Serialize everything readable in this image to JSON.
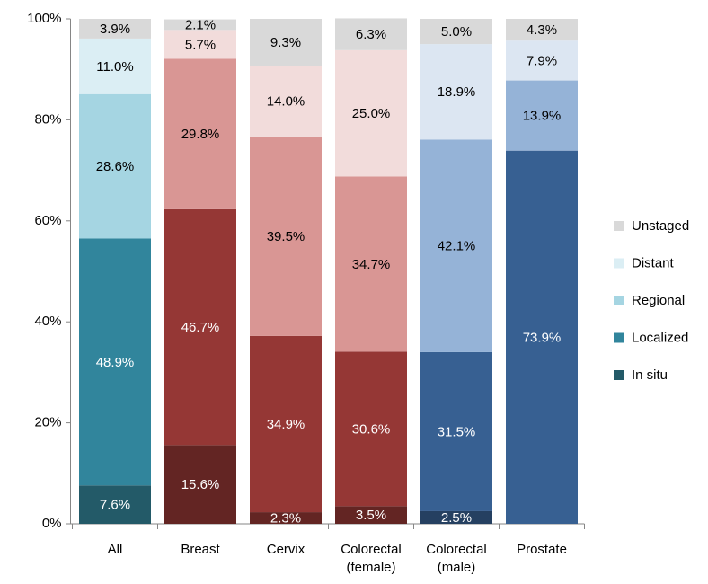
{
  "chart_data": {
    "type": "stacked_bar",
    "categories": [
      "All",
      "Breast",
      "Cervix",
      "Colorectal (female)",
      "Colorectal (male)",
      "Prostate"
    ],
    "series": [
      {
        "name": "In situ",
        "color": "#235a68",
        "colors": [
          "#235a68",
          "#632523",
          "#632523",
          "#632523",
          "#254061",
          "#254061"
        ],
        "values": [
          7.6,
          15.6,
          2.3,
          3.5,
          2.5,
          null
        ],
        "value_labels": [
          "7.6%",
          "15.6%",
          "2.3%",
          "3.5%",
          "2.5%",
          null
        ]
      },
      {
        "name": "Localized",
        "color": "#31859c",
        "colors": [
          "#31859c",
          "#953735",
          "#953735",
          "#953735",
          "#376092",
          "#376092"
        ],
        "values": [
          48.9,
          46.7,
          34.9,
          30.6,
          31.5,
          73.9
        ],
        "value_labels": [
          "48.9%",
          "46.7%",
          "34.9%",
          "30.6%",
          "31.5%",
          "73.9%"
        ]
      },
      {
        "name": "Regional",
        "color": "#a5d5e2",
        "colors": [
          "#a5d5e2",
          "#d99694",
          "#d99694",
          "#d99694",
          "#95b3d7",
          "#95b3d7"
        ],
        "values": [
          28.6,
          29.8,
          39.5,
          34.7,
          42.1,
          13.9
        ],
        "value_labels": [
          "28.6%",
          "29.8%",
          "39.5%",
          "34.7%",
          "42.1%",
          "13.9%"
        ]
      },
      {
        "name": "Distant",
        "color": "#dbeef4",
        "colors": [
          "#dbeef4",
          "#f2dcdb",
          "#f2dcdb",
          "#f2dcdb",
          "#dce6f2",
          "#dce6f2"
        ],
        "values": [
          11.0,
          5.7,
          14.0,
          25.0,
          18.9,
          7.9
        ],
        "value_labels": [
          "11.0%",
          "5.7%",
          "14.0%",
          "25.0%",
          "18.9%",
          "7.9%"
        ]
      },
      {
        "name": "Unstaged",
        "color": "#d9d9d9",
        "colors": [
          "#d9d9d9",
          "#d9d9d9",
          "#d9d9d9",
          "#d9d9d9",
          "#d9d9d9",
          "#d9d9d9"
        ],
        "values": [
          3.9,
          2.1,
          9.3,
          6.3,
          5.0,
          4.3
        ],
        "value_labels": [
          "3.9%",
          "2.1%",
          "9.3%",
          "6.3%",
          "5.0%",
          "4.3%"
        ]
      }
    ],
    "ylim": [
      0,
      100
    ],
    "yticks": [
      {
        "value": 0,
        "label": "0%"
      },
      {
        "value": 20,
        "label": "20%"
      },
      {
        "value": 40,
        "label": "40%"
      },
      {
        "value": 60,
        "label": "60%"
      },
      {
        "value": 80,
        "label": "80%"
      },
      {
        "value": 100,
        "label": "100%"
      }
    ],
    "legend": "right"
  }
}
